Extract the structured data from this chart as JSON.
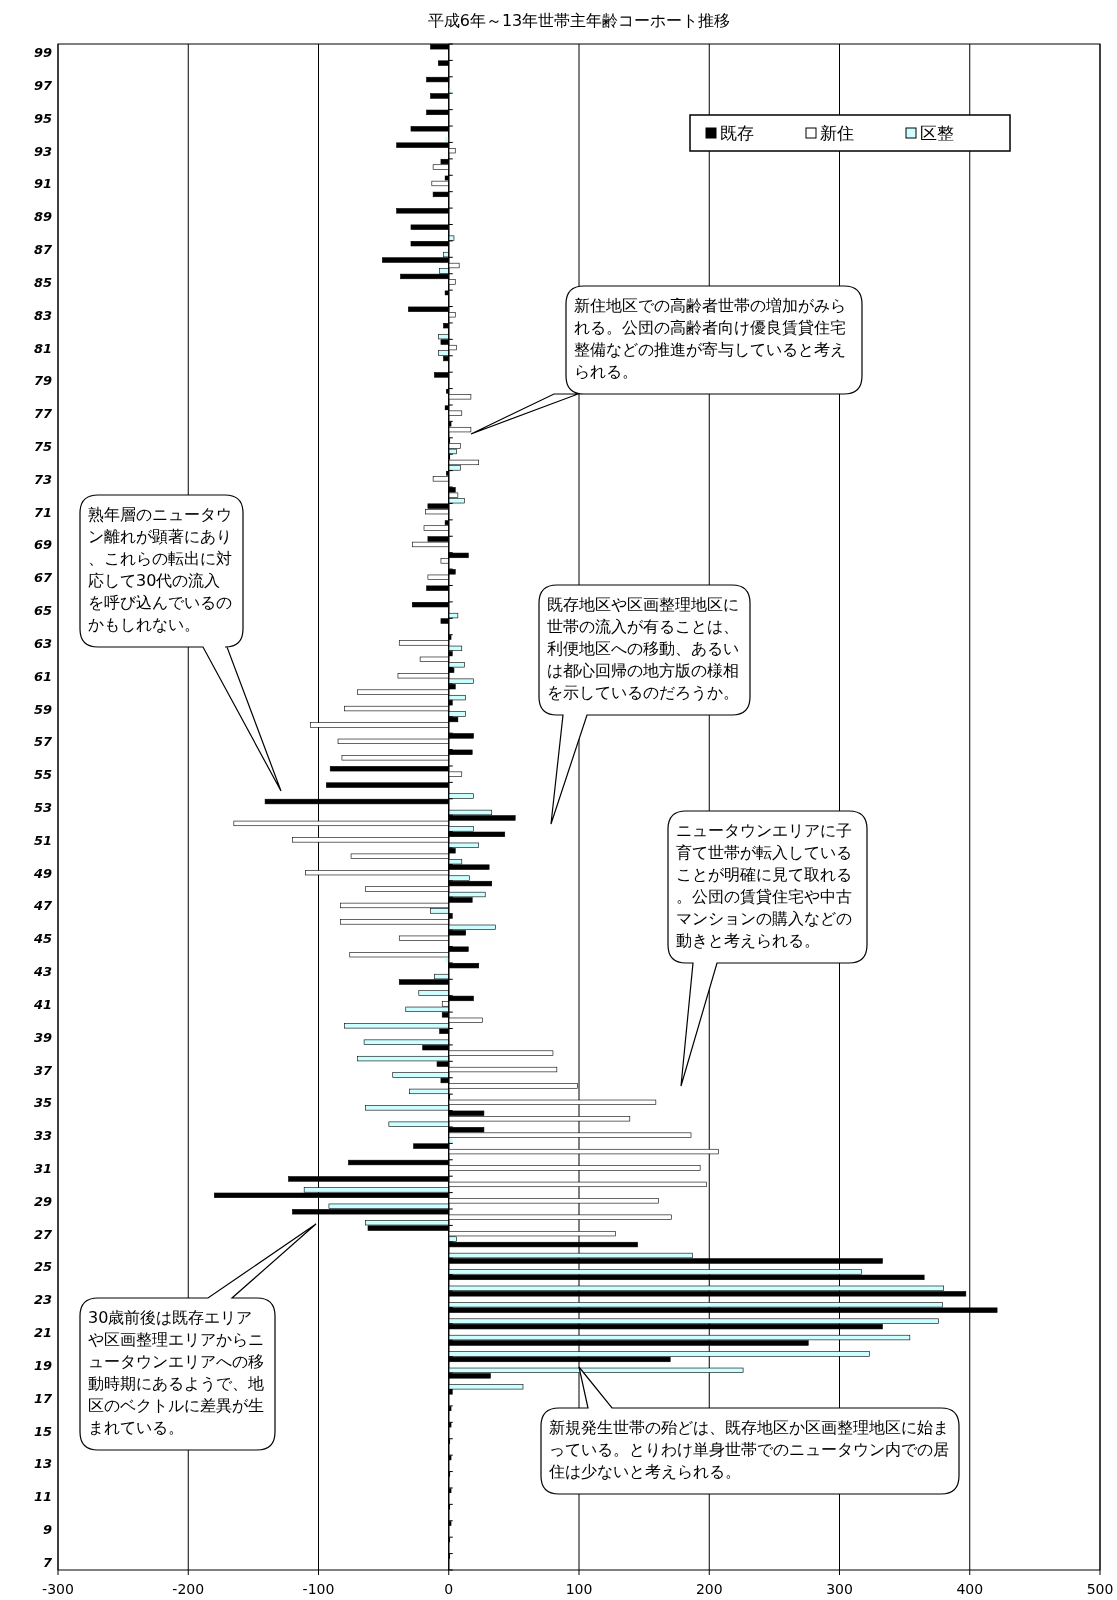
{
  "chart_data": {
    "type": "bar",
    "orientation": "horizontal",
    "title": "平成6年～13年世帯主年齢コーホート推移",
    "categories": [
      "99",
      null,
      "97",
      null,
      "95",
      null,
      "93",
      null,
      "91",
      null,
      "89",
      null,
      "87",
      null,
      "85",
      null,
      "83",
      null,
      "81",
      null,
      "79",
      null,
      "77",
      null,
      "75",
      null,
      "73",
      null,
      "71",
      null,
      "69",
      null,
      "67",
      null,
      "65",
      null,
      "63",
      null,
      "61",
      null,
      "59",
      null,
      "57",
      null,
      "55",
      null,
      "53",
      null,
      "51",
      null,
      "49",
      null,
      "47",
      null,
      "45",
      null,
      "43",
      null,
      "41",
      null,
      "39",
      null,
      "37",
      null,
      "35",
      null,
      "33",
      null,
      "31",
      null,
      "29",
      null,
      "27",
      null,
      "25",
      null,
      "23",
      null,
      "21",
      null,
      "19",
      null,
      "17",
      null,
      "15",
      null,
      "13",
      null,
      "11",
      null,
      "9",
      null,
      "7"
    ],
    "series": [
      {
        "name": "既存",
        "color": "#000000",
        "values": [
          -14,
          -8,
          -17,
          -14,
          -17,
          -29,
          -40,
          -6,
          -3,
          -12,
          -40,
          -29,
          -29,
          -51,
          -37,
          -3,
          -31,
          -4,
          -6,
          -4,
          -11,
          -2,
          -3,
          2,
          1,
          1,
          -2,
          5,
          -16,
          -3,
          -16,
          15,
          5,
          -17,
          -28,
          -6,
          2,
          3,
          4,
          5,
          3,
          7,
          19,
          18,
          -91,
          -94,
          -141,
          51,
          43,
          5,
          31,
          33,
          18,
          3,
          13,
          15,
          23,
          -38,
          19,
          -5,
          -7,
          -20,
          -9,
          -6,
          1,
          27,
          27,
          -27,
          -77,
          -123,
          -180,
          -120,
          -62,
          145,
          333,
          365,
          397,
          421,
          333,
          276,
          170,
          32,
          3,
          2,
          2,
          1,
          2,
          1,
          2,
          1,
          2,
          1,
          1
        ]
      },
      {
        "name": "新住",
        "color": "#ffffff",
        "values": [
          0,
          0,
          0,
          0,
          0,
          0,
          5,
          -12,
          -13,
          0,
          0,
          0,
          0,
          8,
          5,
          0,
          5,
          0,
          6,
          0,
          0,
          17,
          10,
          17,
          9,
          23,
          -12,
          7,
          -18,
          -19,
          -28,
          -6,
          -16,
          0,
          0,
          0,
          -38,
          -22,
          -39,
          -70,
          -80,
          -106,
          -85,
          -82,
          10,
          0,
          0,
          -165,
          -120,
          -75,
          -110,
          -64,
          -83,
          -83,
          -38,
          -76,
          0,
          0,
          -5,
          26,
          0,
          80,
          83,
          99,
          159,
          139,
          186,
          207,
          193,
          198,
          161,
          171,
          128,
          0,
          0,
          0,
          0,
          0,
          0,
          0,
          0,
          0,
          0,
          0,
          0,
          0,
          0,
          0,
          0,
          0,
          0,
          0,
          0
        ]
      },
      {
        "name": "区整",
        "color": "#ccffff",
        "values": [
          0,
          0,
          2,
          0,
          0,
          -3,
          0,
          0,
          0,
          0,
          0,
          4,
          -4,
          -7,
          0,
          0,
          0,
          -8,
          -8,
          0,
          0,
          0,
          0,
          0,
          6,
          9,
          0,
          12,
          0,
          0,
          0,
          0,
          0,
          0,
          7,
          0,
          10,
          12,
          19,
          13,
          13,
          0,
          0,
          0,
          0,
          19,
          33,
          19,
          23,
          10,
          16,
          28,
          -14,
          36,
          0,
          -3,
          -11,
          -23,
          -33,
          -80,
          -65,
          -70,
          -43,
          -30,
          -64,
          -46,
          3,
          0,
          0,
          -111,
          -92,
          -64,
          6,
          187,
          317,
          380,
          379,
          376,
          354,
          323,
          226,
          57,
          0,
          0,
          0,
          0,
          0,
          0,
          0,
          0,
          0,
          0,
          0
        ]
      }
    ],
    "xlim": [
      -300,
      500
    ],
    "xticks": [
      -300,
      -200,
      -100,
      0,
      100,
      200,
      300,
      400,
      500
    ],
    "grid": "x",
    "legend": "top right",
    "annotations": [
      "新住地区での高齢者世帯の増加がみられる。公団の高齢者向け優良賃貸住宅整備などの推進が寄与していると考えられる。",
      "熟年層のニュータウン離れが顕著にあり、これらの転出に対応して30代の流入を呼び込んでいるのかもしれない。",
      "既存地区や区画整理地区に世帯の流入が有ることは、利便地区への移動、あるいは都心回帰の地方版の様相を示しているのだろうか。",
      "ニュータウンエリアに子育て世帯が転入していることが明確に見て取れる。公団の賃貸住宅や中古マンションの購入などの動きと考えられる。",
      "30歳前後は既存エリアや区画整理エリアからニュータウンエリアへの移動時期にあるようで、地区のベクトルに差異が生まれている。",
      "新規発生世帯の殆どは、既存地区か区画整理地区に始まっている。とりわけ単身世帯でのニュータウン内での居住は少ないと考えられる。"
    ]
  }
}
